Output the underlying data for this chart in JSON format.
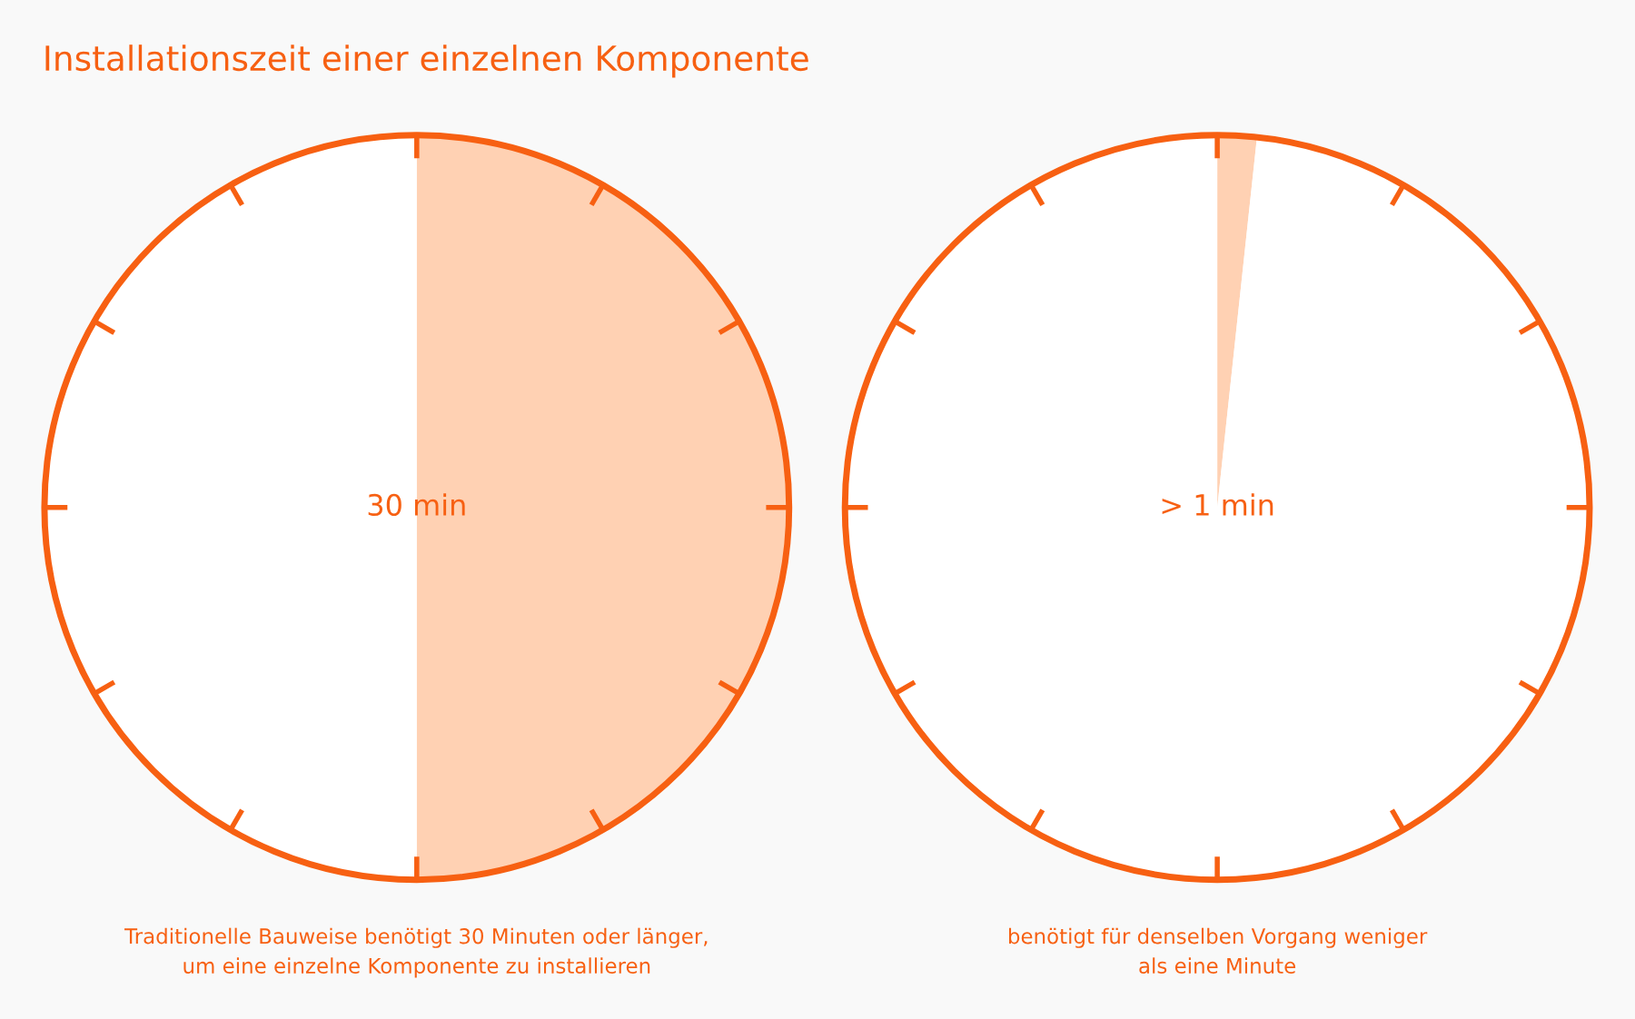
{
  "chart_data": [
    {
      "type": "pie",
      "title": "Installationszeit einer einzelnen Komponente",
      "categories": [
        null,
        null
      ],
      "values": [
        50,
        50
      ],
      "colors": [
        "#ffd1b3",
        "#ffffff"
      ],
      "annotations": [
        "30 min",
        "Traditionelle Bauweise benötigt 30 Minuten oder länger,\num eine einzelne Komponente zu installieren"
      ]
    },
    {
      "type": "pie",
      "categories": [
        null,
        null
      ],
      "values": [
        1.7,
        98.3
      ],
      "colors": [
        "#ffd1b3",
        "#ffffff"
      ],
      "annotations": [
        "> 1 min",
        "benötigt für denselben Vorgang weniger\nals eine Minute"
      ]
    }
  ]
}
